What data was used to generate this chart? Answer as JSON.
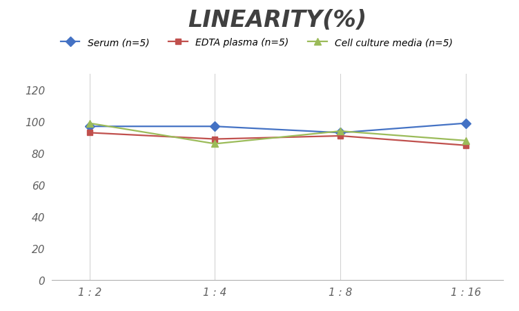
{
  "title": "LINEARITY(%)",
  "title_fontsize": 24,
  "title_fontstyle": "italic",
  "title_fontweight": "bold",
  "x_labels": [
    "1 : 2",
    "1 : 4",
    "1 : 8",
    "1 : 16"
  ],
  "series": [
    {
      "label": "Serum (n=5)",
      "values": [
        97,
        97,
        93,
        99
      ],
      "color": "#4472C4",
      "marker": "D",
      "markersize": 7,
      "linewidth": 1.6
    },
    {
      "label": "EDTA plasma (n=5)",
      "values": [
        93,
        89,
        91,
        85
      ],
      "color": "#C0504D",
      "marker": "s",
      "markersize": 6,
      "linewidth": 1.6
    },
    {
      "label": "Cell culture media (n=5)",
      "values": [
        99,
        86,
        94,
        88
      ],
      "color": "#9BBB59",
      "marker": "^",
      "markersize": 7,
      "linewidth": 1.6
    }
  ],
  "ylim": [
    0,
    130
  ],
  "yticks": [
    0,
    20,
    40,
    60,
    80,
    100,
    120
  ],
  "background_color": "#ffffff",
  "grid_color": "#d3d3d3",
  "legend_fontsize": 10,
  "tick_fontsize": 11
}
